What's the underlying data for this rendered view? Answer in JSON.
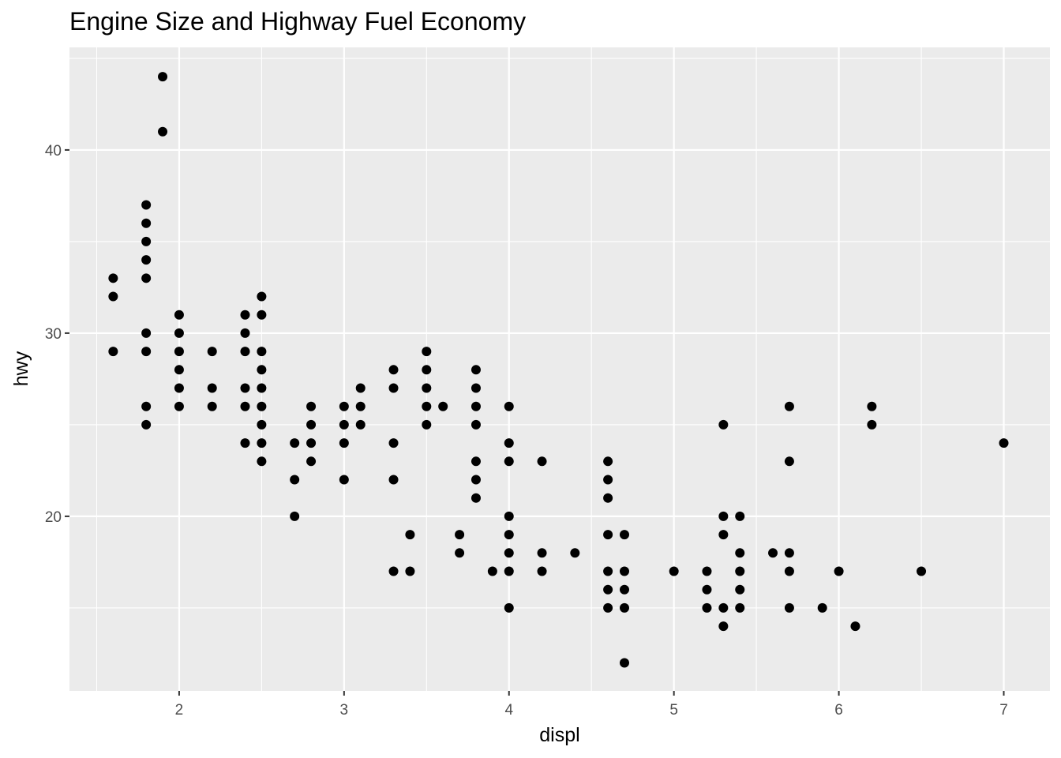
{
  "chart_data": {
    "type": "scatter",
    "title": "Engine Size and Highway Fuel Economy",
    "xlabel": "displ",
    "ylabel": "hwy",
    "xlim": [
      1.335,
      7.28
    ],
    "ylim": [
      10.47,
      45.6
    ],
    "xticks": [
      2,
      3,
      4,
      5,
      6,
      7
    ],
    "yticks": [
      20,
      30,
      40
    ],
    "grid": true,
    "point_color": "#000000",
    "panel_background": "#ebebeb",
    "points": [
      [
        1.6,
        33
      ],
      [
        1.6,
        32
      ],
      [
        1.6,
        29
      ],
      [
        1.8,
        37
      ],
      [
        1.8,
        36
      ],
      [
        1.8,
        35
      ],
      [
        1.8,
        34
      ],
      [
        1.8,
        33
      ],
      [
        1.8,
        30
      ],
      [
        1.8,
        29
      ],
      [
        1.8,
        26
      ],
      [
        1.8,
        25
      ],
      [
        1.9,
        44
      ],
      [
        1.9,
        41
      ],
      [
        2.0,
        31
      ],
      [
        2.0,
        30
      ],
      [
        2.0,
        29
      ],
      [
        2.0,
        28
      ],
      [
        2.0,
        27
      ],
      [
        2.0,
        26
      ],
      [
        2.2,
        29
      ],
      [
        2.2,
        27
      ],
      [
        2.2,
        26
      ],
      [
        2.4,
        31
      ],
      [
        2.4,
        30
      ],
      [
        2.4,
        29
      ],
      [
        2.4,
        27
      ],
      [
        2.4,
        26
      ],
      [
        2.4,
        24
      ],
      [
        2.5,
        32
      ],
      [
        2.5,
        31
      ],
      [
        2.5,
        29
      ],
      [
        2.5,
        28
      ],
      [
        2.5,
        27
      ],
      [
        2.5,
        26
      ],
      [
        2.5,
        25
      ],
      [
        2.5,
        24
      ],
      [
        2.5,
        23
      ],
      [
        2.7,
        24
      ],
      [
        2.7,
        22
      ],
      [
        2.7,
        20
      ],
      [
        2.8,
        26
      ],
      [
        2.8,
        25
      ],
      [
        2.8,
        24
      ],
      [
        2.8,
        23
      ],
      [
        3.0,
        26
      ],
      [
        3.0,
        25
      ],
      [
        3.0,
        24
      ],
      [
        3.0,
        22
      ],
      [
        3.1,
        27
      ],
      [
        3.1,
        26
      ],
      [
        3.1,
        25
      ],
      [
        3.3,
        28
      ],
      [
        3.3,
        27
      ],
      [
        3.3,
        24
      ],
      [
        3.3,
        22
      ],
      [
        3.3,
        17
      ],
      [
        3.4,
        19
      ],
      [
        3.4,
        17
      ],
      [
        3.5,
        29
      ],
      [
        3.5,
        28
      ],
      [
        3.5,
        27
      ],
      [
        3.5,
        26
      ],
      [
        3.5,
        25
      ],
      [
        3.6,
        26
      ],
      [
        3.7,
        19
      ],
      [
        3.7,
        18
      ],
      [
        3.8,
        28
      ],
      [
        3.8,
        27
      ],
      [
        3.8,
        26
      ],
      [
        3.8,
        25
      ],
      [
        3.8,
        23
      ],
      [
        3.8,
        22
      ],
      [
        3.8,
        21
      ],
      [
        3.9,
        17
      ],
      [
        4.0,
        26
      ],
      [
        4.0,
        24
      ],
      [
        4.0,
        23
      ],
      [
        4.0,
        20
      ],
      [
        4.0,
        19
      ],
      [
        4.0,
        18
      ],
      [
        4.0,
        17
      ],
      [
        4.0,
        15
      ],
      [
        4.2,
        23
      ],
      [
        4.2,
        18
      ],
      [
        4.2,
        17
      ],
      [
        4.4,
        18
      ],
      [
        4.6,
        23
      ],
      [
        4.6,
        22
      ],
      [
        4.6,
        21
      ],
      [
        4.6,
        19
      ],
      [
        4.6,
        17
      ],
      [
        4.6,
        16
      ],
      [
        4.6,
        15
      ],
      [
        4.7,
        19
      ],
      [
        4.7,
        17
      ],
      [
        4.7,
        16
      ],
      [
        4.7,
        15
      ],
      [
        4.7,
        12
      ],
      [
        5.0,
        17
      ],
      [
        5.2,
        17
      ],
      [
        5.2,
        16
      ],
      [
        5.2,
        15
      ],
      [
        5.3,
        25
      ],
      [
        5.3,
        20
      ],
      [
        5.3,
        19
      ],
      [
        5.3,
        15
      ],
      [
        5.3,
        14
      ],
      [
        5.4,
        20
      ],
      [
        5.4,
        18
      ],
      [
        5.4,
        17
      ],
      [
        5.4,
        16
      ],
      [
        5.4,
        15
      ],
      [
        5.6,
        18
      ],
      [
        5.7,
        26
      ],
      [
        5.7,
        23
      ],
      [
        5.7,
        18
      ],
      [
        5.7,
        17
      ],
      [
        5.7,
        15
      ],
      [
        5.9,
        15
      ],
      [
        6.0,
        17
      ],
      [
        6.1,
        14
      ],
      [
        6.2,
        26
      ],
      [
        6.2,
        25
      ],
      [
        6.5,
        17
      ],
      [
        7.0,
        24
      ]
    ]
  }
}
